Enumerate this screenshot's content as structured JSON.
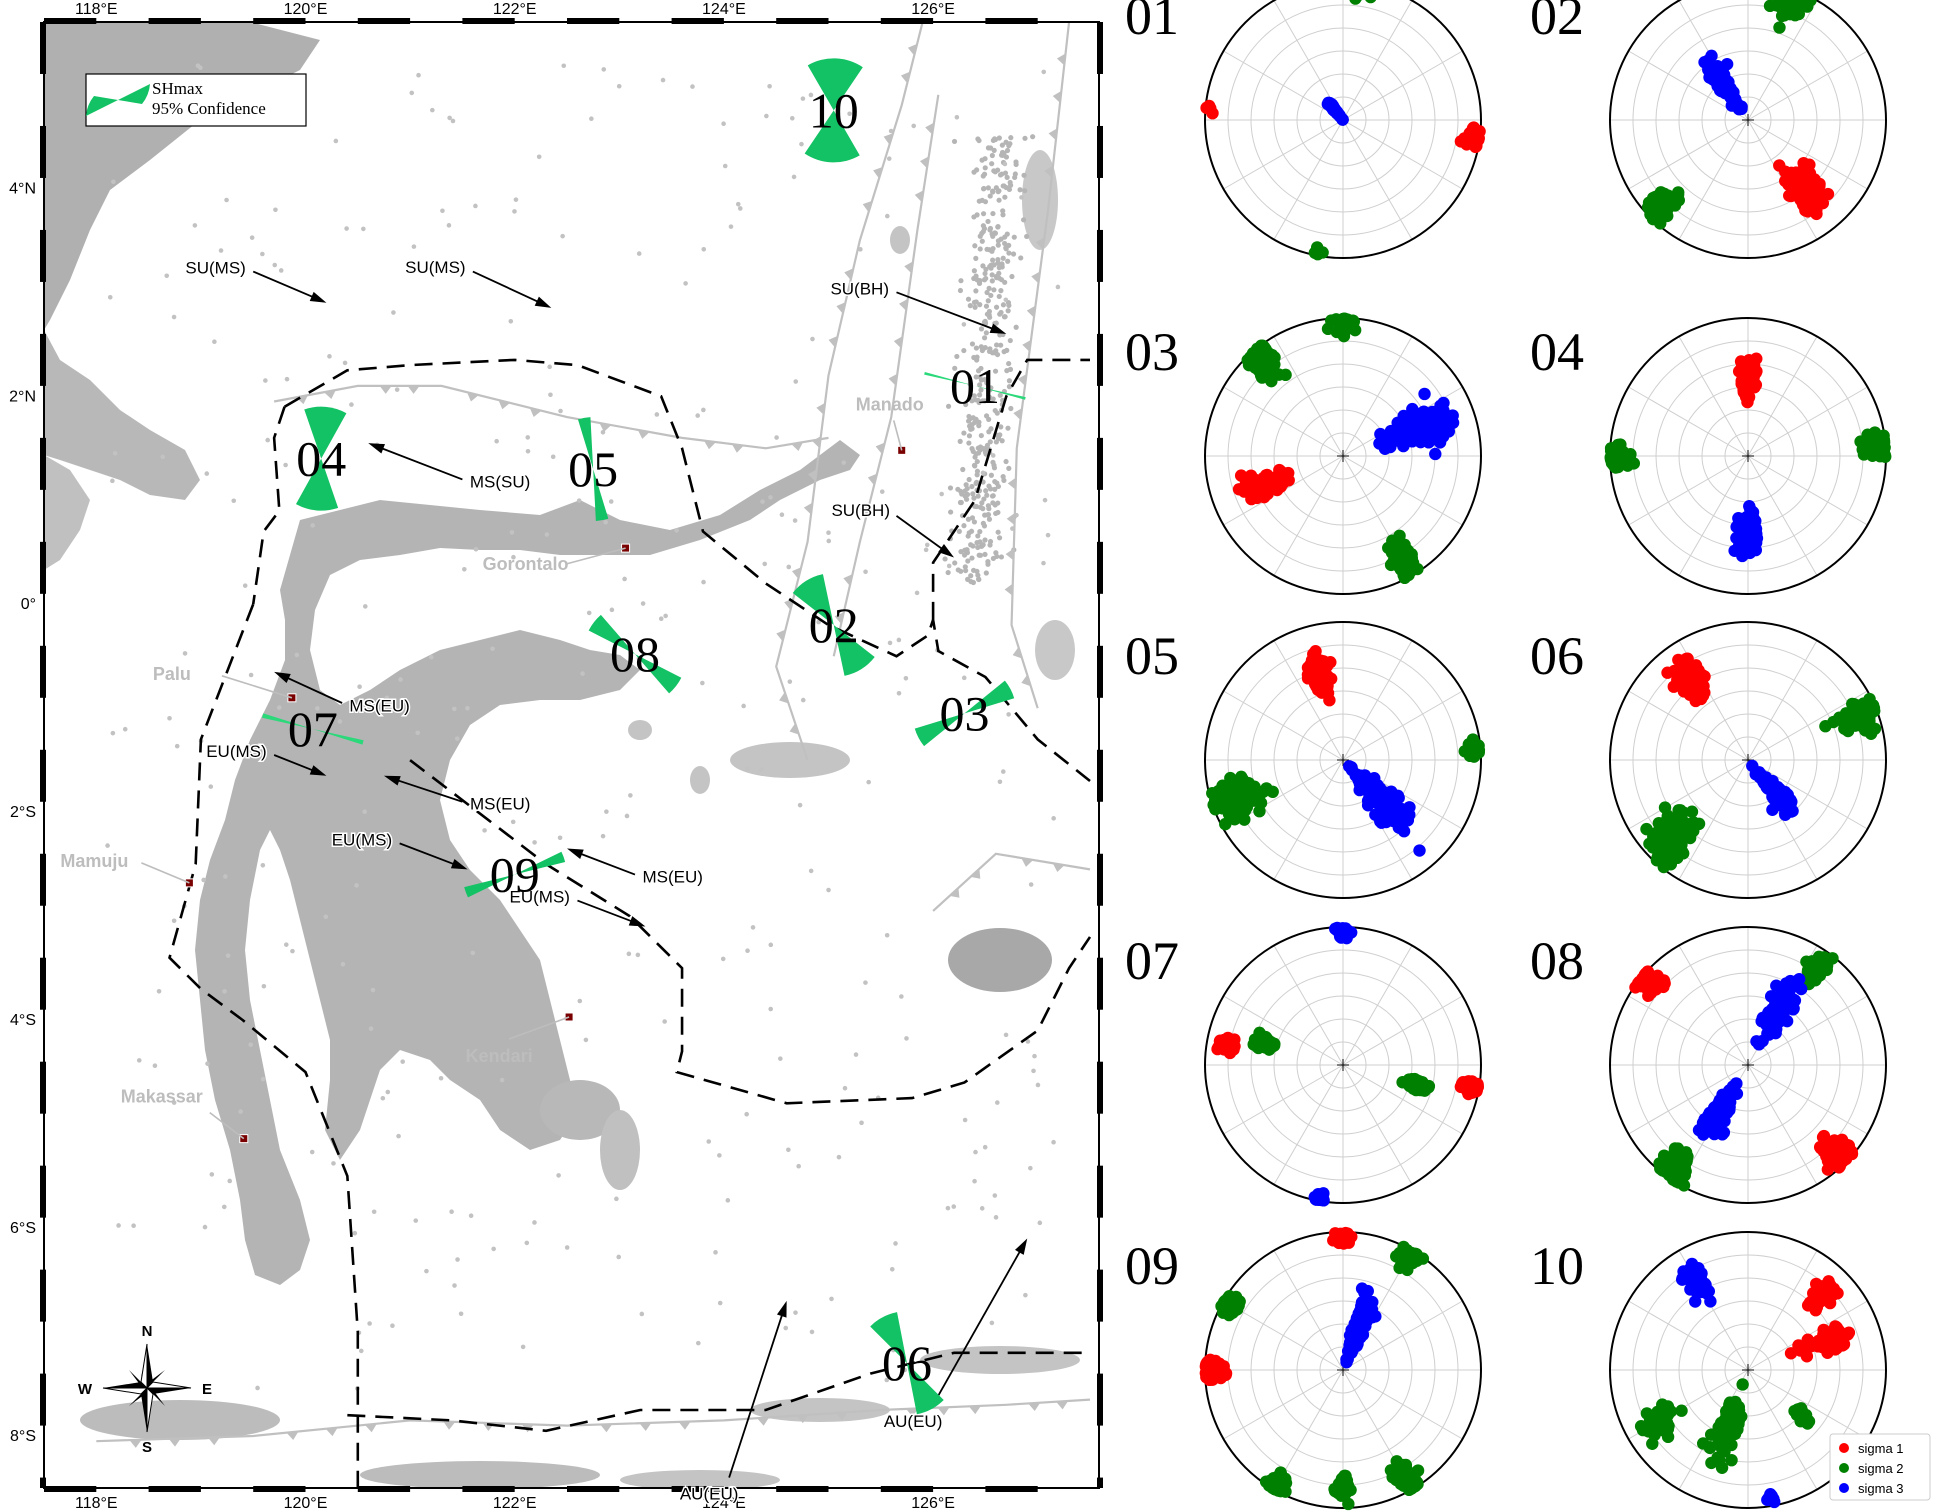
{
  "map": {
    "lon_ticks": [
      {
        "lon": 118,
        "label": "118°E"
      },
      {
        "lon": 120,
        "label": "120°E"
      },
      {
        "lon": 122,
        "label": "122°E"
      },
      {
        "lon": 124,
        "label": "124°E"
      },
      {
        "lon": 126,
        "label": "126°E"
      }
    ],
    "lat_ticks": [
      {
        "lat": 4,
        "label": "4°N"
      },
      {
        "lat": 2,
        "label": "2°N"
      },
      {
        "lat": 0,
        "label": "0°"
      },
      {
        "lat": -2,
        "label": "2°S"
      },
      {
        "lat": -4,
        "label": "4°S"
      },
      {
        "lat": -6,
        "label": "6°S"
      },
      {
        "lat": -8,
        "label": "8°S"
      }
    ],
    "legend": {
      "line1": "SHmax",
      "line2": "95% Confidence"
    },
    "compass": {
      "n": "N",
      "s": "S",
      "e": "E",
      "w": "W"
    },
    "cities": [
      {
        "name": "Manado",
        "lon": 125.7,
        "lat": 1.48
      },
      {
        "name": "Gorontalo",
        "lon": 123.06,
        "lat": 0.54
      },
      {
        "name": "Palu",
        "lon": 119.87,
        "lat": -0.9
      },
      {
        "name": "Mamuju",
        "lon": 118.89,
        "lat": -2.68
      },
      {
        "name": "Kendari",
        "lon": 122.52,
        "lat": -3.97
      },
      {
        "name": "Makassar",
        "lon": 119.41,
        "lat": -5.14
      }
    ],
    "regions": [
      {
        "id": "01",
        "lon": 126.4,
        "lat": 2.1,
        "azimuth": 104,
        "width": 3,
        "color": "#2bd87a"
      },
      {
        "id": "02",
        "lon": 125.05,
        "lat": -0.2,
        "azimuth": 148,
        "width": 40,
        "color": "#12c264"
      },
      {
        "id": "03",
        "lon": 126.3,
        "lat": -1.05,
        "azimuth": 62,
        "width": 22,
        "color": "#12c264"
      },
      {
        "id": "04",
        "lon": 120.15,
        "lat": 1.4,
        "azimuth": 5,
        "width": 48,
        "color": "#12c264"
      },
      {
        "id": "05",
        "lon": 122.75,
        "lat": 1.3,
        "azimuth": 170,
        "width": 14,
        "color": "#12c264"
      },
      {
        "id": "06",
        "lon": 125.75,
        "lat": -7.3,
        "azimuth": 152,
        "width": 34,
        "color": "#12c264"
      },
      {
        "id": "07",
        "lon": 120.07,
        "lat": -1.2,
        "azimuth": 105,
        "width": 5,
        "color": "#2bd87a"
      },
      {
        "id": "08",
        "lon": 123.15,
        "lat": -0.48,
        "azimuth": 128,
        "width": 22,
        "color": "#12c264"
      },
      {
        "id": "09",
        "lon": 122.0,
        "lat": -2.6,
        "azimuth": 70,
        "width": 12,
        "color": "#12c264"
      },
      {
        "id": "10",
        "lon": 125.05,
        "lat": 4.75,
        "azimuth": 2,
        "width": 64,
        "color": "#12c264"
      }
    ],
    "arrows": [
      {
        "label": "SU(MS)",
        "lon": 119.5,
        "lat": 3.2,
        "to_lon": 120.2,
        "to_lat": 2.9
      },
      {
        "label": "SU(MS)",
        "lon": 121.6,
        "lat": 3.2,
        "to_lon": 122.35,
        "to_lat": 2.85
      },
      {
        "label": "SU(BH)",
        "lon": 125.65,
        "lat": 3.0,
        "to_lon": 126.7,
        "to_lat": 2.6
      },
      {
        "label": "SU(BH)",
        "lon": 125.65,
        "lat": 0.85,
        "to_lon": 126.2,
        "to_lat": 0.45
      },
      {
        "label": "MS(SU)",
        "lon": 121.5,
        "lat": 1.2,
        "to_lon": 120.6,
        "to_lat": 1.55
      },
      {
        "label": "MS(EU)",
        "lon": 120.35,
        "lat": -0.95,
        "to_lon": 119.7,
        "to_lat": -0.65
      },
      {
        "label": "EU(MS)",
        "lon": 119.7,
        "lat": -1.45,
        "to_lon": 120.2,
        "to_lat": -1.65
      },
      {
        "label": "MS(EU)",
        "lon": 121.5,
        "lat": -1.9,
        "to_lon": 120.75,
        "to_lat": -1.65
      },
      {
        "label": "EU(MS)",
        "lon": 120.9,
        "lat": -2.3,
        "to_lon": 121.55,
        "to_lat": -2.55
      },
      {
        "label": "MS(EU)",
        "lon": 123.15,
        "lat": -2.6,
        "to_lon": 122.5,
        "to_lat": -2.35
      },
      {
        "label": "EU(MS)",
        "lon": 122.6,
        "lat": -2.85,
        "to_lon": 123.25,
        "to_lat": -3.1
      },
      {
        "label": "AU(EU)",
        "lon": 124.05,
        "lat": -8.4,
        "to_lon": 124.6,
        "to_lat": -6.7
      },
      {
        "label": "AU(EU)",
        "lon": 126.0,
        "lat": -7.7,
        "to_lon": 126.9,
        "to_lat": -6.1
      }
    ]
  },
  "stereonets": {
    "panels": [
      "01",
      "02",
      "03",
      "04",
      "05",
      "06",
      "07",
      "08",
      "09",
      "10"
    ],
    "legend": [
      {
        "label": "sigma 1",
        "color": "#ff0000"
      },
      {
        "label": "sigma 2",
        "color": "#008000"
      },
      {
        "label": "sigma 3",
        "color": "#0000ff"
      }
    ]
  },
  "colors": {
    "land": "#bdbdbd",
    "highland": "#8c8c8c",
    "shmax": "#12c264",
    "boundary": "#000000",
    "fault": "#c0c0c0",
    "seismicity": "#b5b5b5",
    "sigma1": "#ff0000",
    "sigma2": "#008000",
    "sigma3": "#0000ff"
  }
}
